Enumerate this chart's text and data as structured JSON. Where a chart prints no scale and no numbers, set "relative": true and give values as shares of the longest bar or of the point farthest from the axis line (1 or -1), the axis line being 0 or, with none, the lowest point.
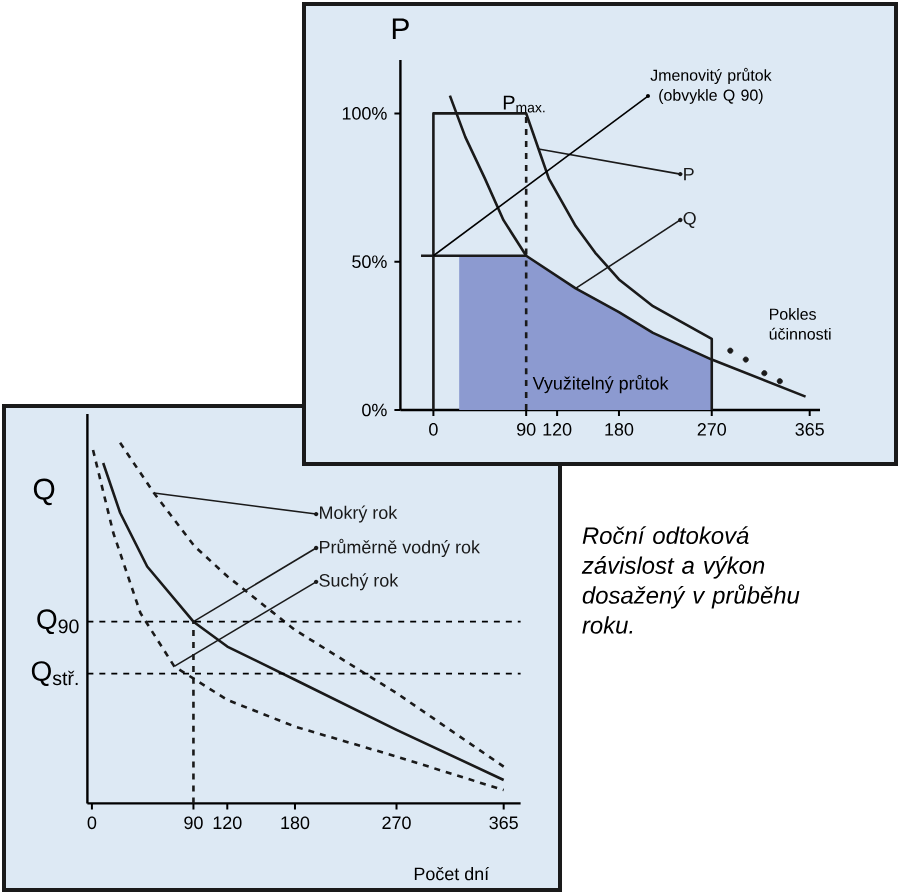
{
  "chart_data": [
    {
      "type": "line",
      "ylabel": "P",
      "xlim": [
        -32,
        375
      ],
      "ylim": [
        0,
        118
      ],
      "xticks": [
        0,
        90,
        120,
        180,
        270,
        365
      ],
      "yticks": [
        {
          "value": 0,
          "label": "0%"
        },
        {
          "value": 50,
          "label": "50%"
        },
        {
          "value": 100,
          "label": "100%"
        }
      ],
      "legend": "right",
      "grid": false,
      "marker": "none",
      "line_style": "solid",
      "annotations": [
        "P$_{max.}$",
        {
          "text": "Jmenovitý průtok (obvykle Q 90)",
          "x": 0,
          "y": 52
        },
        "Pokles účinnosti"
      ],
      "series": [
        {
          "type": "area",
          "name": "Využitelný průtok",
          "color": "#8c9ad0",
          "x": [
            25,
            25,
            90,
            138,
            180,
            213,
            270,
            270
          ],
          "values": [
            0,
            52,
            52,
            41,
            33,
            26,
            17,
            0
          ]
        },
        {
          "color": "#1a1a1a",
          "x": [
            -12,
            90
          ],
          "values": [
            52,
            52
          ]
        },
        {
          "color": "#1a1a1a",
          "line_style": "dashed",
          "x": [
            90,
            90
          ],
          "values": [
            0,
            100
          ]
        },
        {
          "name": "P",
          "color": "#1a1a1a",
          "x": [
            0,
            0,
            90,
            102,
            112,
            138,
            157,
            180,
            213,
            270,
            270
          ],
          "values": [
            0,
            100,
            100,
            88,
            78,
            62,
            53,
            44,
            35,
            24,
            0
          ]
        },
        {
          "name": "Q",
          "color": "#1a1a1a",
          "x": [
            16,
            31,
            50,
            68,
            90,
            138,
            180,
            213,
            270,
            361
          ],
          "values": [
            106,
            92,
            78,
            64,
            52,
            41,
            33,
            26,
            17,
            4.5
          ]
        },
        {
          "type": "scatter",
          "marker": "circle",
          "color": "#1a1a1a",
          "x": [
            288,
            303,
            321,
            336
          ],
          "values": [
            20,
            17,
            12.4,
            9.7
          ]
        }
      ]
    },
    {
      "type": "line",
      "relative": true,
      "xlabel": "Počet dní",
      "ylabel": "Q",
      "xlim": [
        -4,
        380
      ],
      "xticks": [
        0,
        90,
        120,
        180,
        270,
        365
      ],
      "legend": "top",
      "grid": false,
      "marker": "none",
      "line_style": "solid",
      "ref_lines": [
        {
          "axis": "y",
          "value": 0.504,
          "label": "Q$_{90}$",
          "line_style": "dashed"
        },
        {
          "axis": "y",
          "value": 0.36,
          "label": "Q$_{stř.}$",
          "line_style": "dashed"
        }
      ],
      "annotations": [
        "Roční odtoková závislost a výkon dosažený v průběhu roku."
      ],
      "series": [
        {
          "name": "Mokrý rok",
          "color": "#1a1a1a",
          "line_style": "dashed",
          "x": [
            25,
            55,
            91,
            120,
            180,
            270,
            365
          ],
          "values": [
            1.0,
            0.861,
            0.713,
            0.63,
            0.481,
            0.306,
            0.102
          ]
        },
        {
          "name": "Průměrně vodný rok",
          "color": "#1a1a1a",
          "x": [
            10,
            25,
            49,
            90,
            120,
            180,
            270,
            365
          ],
          "values": [
            0.944,
            0.806,
            0.657,
            0.504,
            0.435,
            0.343,
            0.204,
            0.065
          ]
        },
        {
          "name": "Suchý rok",
          "color": "#1a1a1a",
          "line_style": "dashed",
          "x": [
            1,
            19,
            43,
            73,
            120,
            180,
            270,
            365
          ],
          "values": [
            0.98,
            0.75,
            0.528,
            0.38,
            0.287,
            0.213,
            0.13,
            0.037
          ]
        },
        {
          "color": "#1a1a1a",
          "line_style": "dashed",
          "x": [
            90,
            90
          ],
          "values": [
            0,
            0.504
          ]
        }
      ]
    }
  ]
}
